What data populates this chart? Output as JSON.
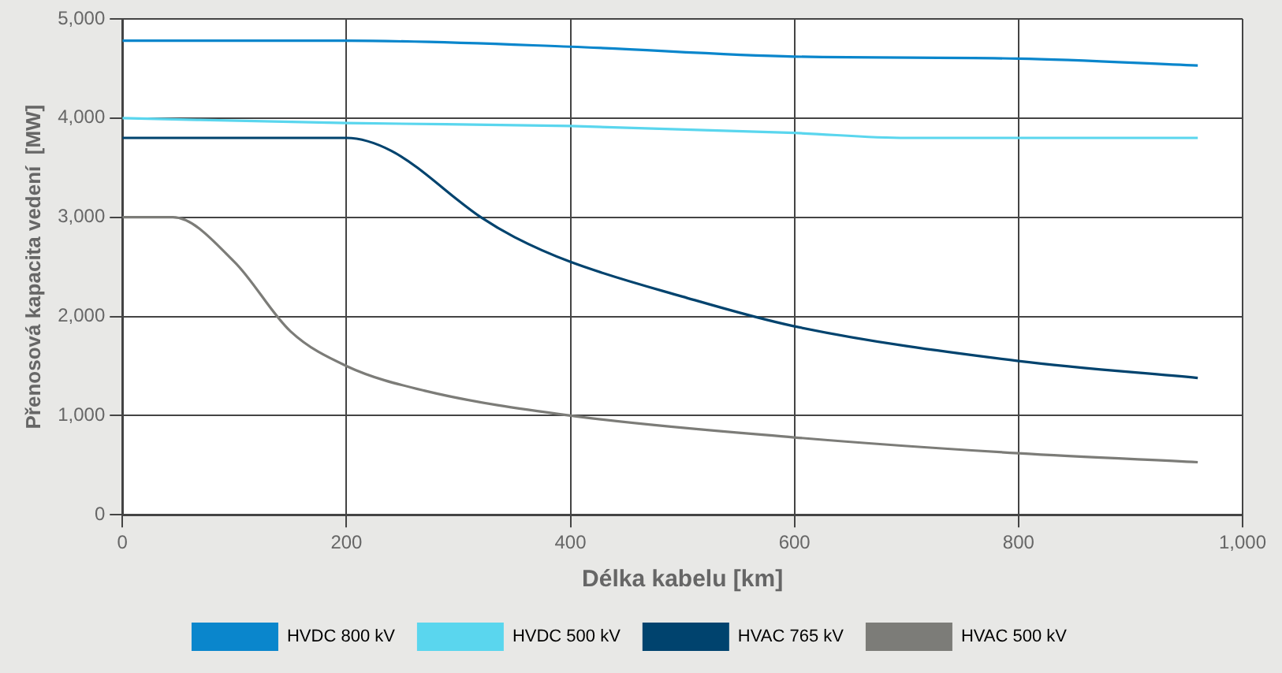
{
  "chart_data": {
    "type": "line",
    "xlabel": "Délka kabelu [km]",
    "ylabel": "Přenosová kapacita vedení  [MW]",
    "xlim": [
      0,
      1000
    ],
    "xticks": [
      0,
      200,
      400,
      600,
      800,
      {
        "value": 1000,
        "label": "1,000"
      }
    ],
    "ylim": [
      0,
      5000
    ],
    "yticks": [
      0,
      {
        "value": 1000,
        "label": "1,000"
      },
      {
        "value": 2000,
        "label": "2,000"
      },
      {
        "value": 3000,
        "label": "3,000"
      },
      {
        "value": 4000,
        "label": "4,000"
      },
      {
        "value": 5000,
        "label": "5,000"
      }
    ],
    "grid": true,
    "legend": "bottom",
    "marker": "none",
    "line_style": "solid",
    "series": [
      {
        "name": "HVDC 800 kV",
        "color": "#0a86cc",
        "x": [
          0,
          200,
          400,
          600,
          800,
          960
        ],
        "values": [
          4780,
          4780,
          4720,
          4620,
          4600,
          4530
        ]
      },
      {
        "name": "HVDC 500 kV",
        "color": "#5ad6ee",
        "x": [
          0,
          200,
          400,
          600,
          700,
          960
        ],
        "values": [
          4000,
          3950,
          3920,
          3850,
          3800,
          3800
        ]
      },
      {
        "name": "HVAC 765 kV",
        "color": "#00436e",
        "x": [
          0,
          200,
          240,
          320,
          350,
          400,
          500,
          600,
          800,
          960
        ],
        "values": [
          3800,
          3800,
          3670,
          3000,
          2800,
          2550,
          2200,
          1900,
          1550,
          1380
        ]
      },
      {
        "name": "HVAC 500 kV",
        "color": "#7c7c78",
        "x": [
          0,
          45,
          100,
          150,
          200,
          270,
          400,
          600,
          800,
          960
        ],
        "values": [
          3000,
          3000,
          2550,
          1850,
          1500,
          1250,
          1000,
          780,
          620,
          530
        ]
      }
    ]
  }
}
